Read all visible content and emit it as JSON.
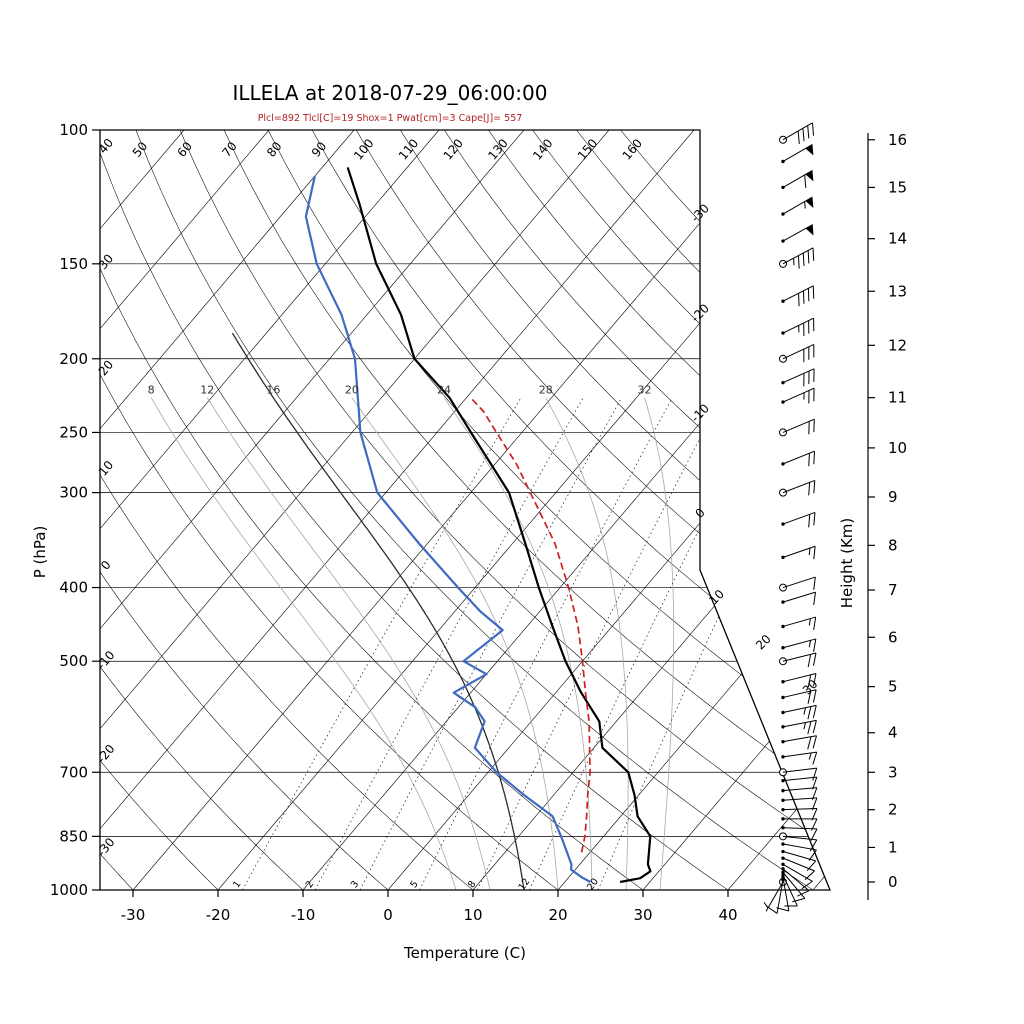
{
  "title": "ILLELA at 2018-07-29_06:00:00",
  "subtitle": "Plcl=892 Tlcl[C]=19 Shox=1 Pwat[cm]=3 Cape[J]= 557",
  "colors": {
    "temperature": "#000000",
    "dewpoint": "#3f6ac1",
    "parcel": "#cf2020",
    "subtitle": "#b22222",
    "moist_adiabat": "#a8a8a8",
    "moist_adiabat_highlight": "#2b2b2b",
    "grid": "#000000"
  },
  "axes": {
    "pressure_label": "P (hPa)",
    "pressure_ticks": [
      100,
      150,
      200,
      250,
      300,
      400,
      500,
      700,
      850,
      1000
    ],
    "temperature_label": "Temperature (C)",
    "temperature_ticks": [
      -30,
      -20,
      -10,
      0,
      10,
      20,
      30,
      40
    ],
    "height_label": "Height (Km)",
    "height_ticks": [
      {
        "km": 16,
        "p": 103
      },
      {
        "km": 15,
        "p": 119
      },
      {
        "km": 14,
        "p": 139
      },
      {
        "km": 13,
        "p": 163
      },
      {
        "km": 12,
        "p": 192
      },
      {
        "km": 11,
        "p": 225
      },
      {
        "km": 10,
        "p": 262
      },
      {
        "km": 9,
        "p": 304
      },
      {
        "km": 8,
        "p": 352
      },
      {
        "km": 7,
        "p": 403
      },
      {
        "km": 6,
        "p": 465
      },
      {
        "km": 5,
        "p": 540
      },
      {
        "km": 4,
        "p": 621
      },
      {
        "km": 3,
        "p": 700
      },
      {
        "km": 2,
        "p": 784
      },
      {
        "km": 1,
        "p": 879
      },
      {
        "km": 0,
        "p": 976
      }
    ]
  },
  "grid": {
    "isotherms": {
      "min": -110,
      "max": 50,
      "step": 10,
      "edge_labels": [
        -30,
        -20,
        -10,
        0,
        10,
        20,
        30
      ]
    },
    "dry_adiabats": {
      "min": -30,
      "max": 160,
      "step": 10
    },
    "moist_adiabats": {
      "values": [
        8,
        12,
        16,
        20,
        24,
        28,
        32
      ],
      "label_pressure": 225,
      "highlight": 16
    },
    "mixing_ratios": [
      1,
      2,
      3,
      5,
      8,
      12,
      20
    ]
  },
  "chart_data": {
    "type": "line",
    "variant": "skew-t log-p sounding",
    "station": "ILLELA",
    "time": "2018-07-29_06:00:00",
    "diagnostics": {
      "Plcl": 892,
      "Tlcl_C": 19,
      "Shox": 1,
      "Pwat_cm": 3,
      "Cape_J": 557
    },
    "pressure_range_hPa": [
      100,
      1000
    ],
    "series": [
      {
        "name": "temperature",
        "units": "deg C vs hPa",
        "points": [
          [
            976,
            26.5
          ],
          [
            965,
            28.5
          ],
          [
            945,
            29
          ],
          [
            925,
            28
          ],
          [
            850,
            25.5
          ],
          [
            800,
            22
          ],
          [
            750,
            19.5
          ],
          [
            700,
            16.5
          ],
          [
            650,
            11
          ],
          [
            600,
            8
          ],
          [
            550,
            3
          ],
          [
            500,
            -2
          ],
          [
            450,
            -7
          ],
          [
            400,
            -12.5
          ],
          [
            350,
            -18.5
          ],
          [
            300,
            -25.5
          ],
          [
            250,
            -36
          ],
          [
            225,
            -42
          ],
          [
            200,
            -50
          ],
          [
            175,
            -56
          ],
          [
            150,
            -64
          ],
          [
            125,
            -72
          ],
          [
            112,
            -77
          ]
        ]
      },
      {
        "name": "dewpoint",
        "units": "deg C vs hPa",
        "points": [
          [
            976,
            23
          ],
          [
            962,
            21.5
          ],
          [
            940,
            19.5
          ],
          [
            925,
            19
          ],
          [
            850,
            15
          ],
          [
            800,
            12
          ],
          [
            750,
            6.5
          ],
          [
            700,
            1
          ],
          [
            650,
            -4
          ],
          [
            600,
            -5.5
          ],
          [
            575,
            -8
          ],
          [
            550,
            -12
          ],
          [
            520,
            -10
          ],
          [
            500,
            -14
          ],
          [
            455,
            -12.5
          ],
          [
            430,
            -17
          ],
          [
            400,
            -22
          ],
          [
            350,
            -31
          ],
          [
            300,
            -41
          ],
          [
            250,
            -49
          ],
          [
            200,
            -57
          ],
          [
            175,
            -63
          ],
          [
            150,
            -71
          ],
          [
            130,
            -77
          ],
          [
            115,
            -80
          ]
        ]
      },
      {
        "name": "parcel",
        "units": "deg C vs hPa",
        "points": [
          [
            892,
            19
          ],
          [
            850,
            17.8
          ],
          [
            800,
            16
          ],
          [
            750,
            14
          ],
          [
            700,
            12
          ],
          [
            650,
            9.5
          ],
          [
            600,
            6.8
          ],
          [
            550,
            3.5
          ],
          [
            500,
            0
          ],
          [
            450,
            -4
          ],
          [
            400,
            -9
          ],
          [
            350,
            -15
          ],
          [
            300,
            -23
          ],
          [
            275,
            -27.5
          ],
          [
            250,
            -33
          ],
          [
            235,
            -36.5
          ],
          [
            225,
            -39.5
          ]
        ]
      }
    ],
    "winds": [
      {
        "p": 976,
        "spd": 5,
        "dir": 210,
        "m": "c"
      },
      {
        "p": 970,
        "spd": 8,
        "dir": 190,
        "m": "d"
      },
      {
        "p": 963,
        "spd": 10,
        "dir": 170,
        "m": "d"
      },
      {
        "p": 956,
        "spd": 10,
        "dir": 155,
        "m": "d"
      },
      {
        "p": 948,
        "spd": 12,
        "dir": 140,
        "m": "d"
      },
      {
        "p": 938,
        "spd": 10,
        "dir": 130,
        "m": "d"
      },
      {
        "p": 925,
        "spd": 10,
        "dir": 120,
        "m": "d"
      },
      {
        "p": 908,
        "spd": 10,
        "dir": 112,
        "m": "d"
      },
      {
        "p": 890,
        "spd": 10,
        "dir": 106,
        "m": "d"
      },
      {
        "p": 870,
        "spd": 12,
        "dir": 100,
        "m": "d"
      },
      {
        "p": 850,
        "spd": 12,
        "dir": 96,
        "m": "c"
      },
      {
        "p": 828,
        "spd": 10,
        "dir": 92,
        "m": "d"
      },
      {
        "p": 806,
        "spd": 10,
        "dir": 90,
        "m": "d"
      },
      {
        "p": 784,
        "spd": 12,
        "dir": 88,
        "m": "d"
      },
      {
        "p": 762,
        "spd": 12,
        "dir": 86,
        "m": "d"
      },
      {
        "p": 740,
        "spd": 10,
        "dir": 85,
        "m": "d"
      },
      {
        "p": 718,
        "spd": 12,
        "dir": 84,
        "m": "d"
      },
      {
        "p": 700,
        "spd": 12,
        "dir": 83,
        "m": "c"
      },
      {
        "p": 668,
        "spd": 15,
        "dir": 82,
        "m": "d"
      },
      {
        "p": 638,
        "spd": 20,
        "dir": 80,
        "m": "d"
      },
      {
        "p": 610,
        "spd": 25,
        "dir": 79,
        "m": "d"
      },
      {
        "p": 584,
        "spd": 25,
        "dir": 78,
        "m": "d"
      },
      {
        "p": 558,
        "spd": 22,
        "dir": 77,
        "m": "d"
      },
      {
        "p": 532,
        "spd": 20,
        "dir": 76,
        "m": "d"
      },
      {
        "p": 500,
        "spd": 18,
        "dir": 76,
        "m": "c"
      },
      {
        "p": 480,
        "spd": 16,
        "dir": 75,
        "m": "d"
      },
      {
        "p": 450,
        "spd": 14,
        "dir": 74,
        "m": "d"
      },
      {
        "p": 418,
        "spd": 12,
        "dir": 73,
        "m": "d"
      },
      {
        "p": 400,
        "spd": 12,
        "dir": 72,
        "m": "c"
      },
      {
        "p": 365,
        "spd": 15,
        "dir": 71,
        "m": "d"
      },
      {
        "p": 330,
        "spd": 18,
        "dir": 70,
        "m": "d"
      },
      {
        "p": 300,
        "spd": 18,
        "dir": 69,
        "m": "c"
      },
      {
        "p": 275,
        "spd": 20,
        "dir": 68,
        "m": "d"
      },
      {
        "p": 250,
        "spd": 22,
        "dir": 67,
        "m": "c"
      },
      {
        "p": 228,
        "spd": 26,
        "dir": 66,
        "m": "d"
      },
      {
        "p": 215,
        "spd": 28,
        "dir": 66,
        "m": "d"
      },
      {
        "p": 200,
        "spd": 30,
        "dir": 65,
        "m": "c"
      },
      {
        "p": 185,
        "spd": 34,
        "dir": 64,
        "m": "d"
      },
      {
        "p": 168,
        "spd": 38,
        "dir": 63,
        "m": "d"
      },
      {
        "p": 150,
        "spd": 44,
        "dir": 62,
        "m": "c"
      },
      {
        "p": 140,
        "spd": 50,
        "dir": 61,
        "m": "d"
      },
      {
        "p": 129,
        "spd": 56,
        "dir": 60,
        "m": "d"
      },
      {
        "p": 119,
        "spd": 62,
        "dir": 60,
        "m": "d"
      },
      {
        "p": 110,
        "spd": 52,
        "dir": 60,
        "m": "d"
      },
      {
        "p": 103,
        "spd": 42,
        "dir": 60,
        "m": "c"
      }
    ]
  }
}
